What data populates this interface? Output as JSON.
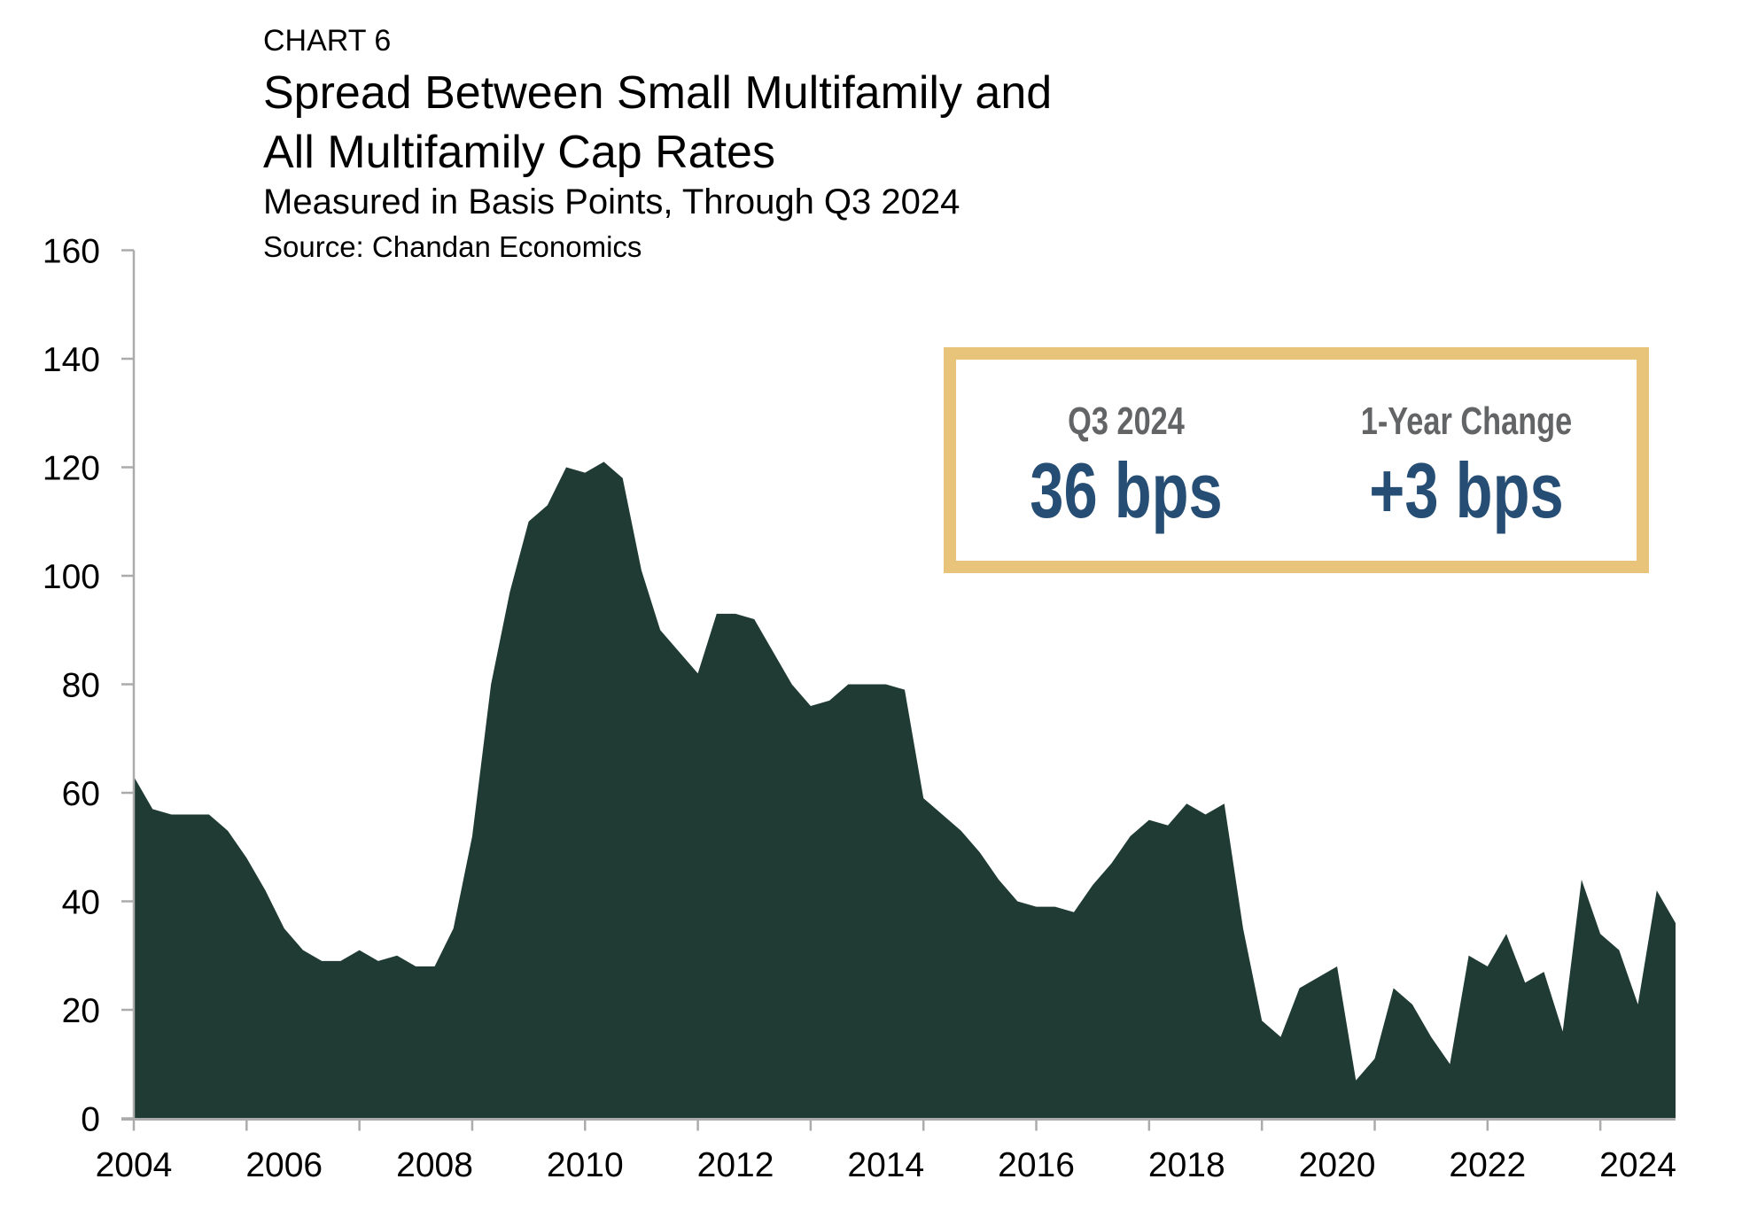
{
  "header": {
    "label": "CHART 6",
    "title_line1": "Spread Between Small Multifamily and",
    "title_line2": "All Multifamily Cap Rates",
    "subtitle": "Measured in Basis Points, Through Q3 2024",
    "source": "Source: Chandan Economics"
  },
  "callout": {
    "left_label": "Q3 2024",
    "left_value": "36 bps",
    "right_label": "1-Year Change",
    "right_value": "+3 bps",
    "border_color": "#E8C37A",
    "value_color": "#264D73",
    "label_color": "#636466"
  },
  "chart_data": {
    "type": "area",
    "title": "Spread Between Small Multifamily and All Multifamily Cap Rates",
    "subtitle": "Measured in Basis Points, Through Q3 2024",
    "source": "Source: Chandan Economics",
    "xlabel": "",
    "ylabel": "",
    "frequency": "quarterly",
    "x_start": "2004 Q1",
    "x_end": "2024 Q3",
    "ylim": [
      0,
      160
    ],
    "yticks": [
      0,
      20,
      40,
      60,
      80,
      100,
      120,
      140,
      160
    ],
    "xtick_labels": [
      "2004",
      "2006",
      "2008",
      "2010",
      "2012",
      "2014",
      "2016",
      "2018",
      "2020",
      "2022",
      "2024"
    ],
    "grid": false,
    "legend": "none",
    "fill_color": "#1F3B33",
    "series": [
      {
        "name": "Spread (bps)",
        "values": [
          63,
          57,
          56,
          56,
          56,
          53,
          48,
          42,
          35,
          31,
          29,
          29,
          31,
          29,
          30,
          28,
          28,
          35,
          52,
          80,
          97,
          110,
          113,
          120,
          119,
          121,
          118,
          101,
          90,
          86,
          82,
          93,
          93,
          92,
          86,
          80,
          76,
          77,
          80,
          80,
          80,
          79,
          59,
          56,
          53,
          49,
          44,
          40,
          39,
          39,
          38,
          43,
          47,
          52,
          55,
          54,
          58,
          56,
          58,
          35,
          18,
          15,
          24,
          26,
          28,
          7,
          11,
          24,
          21,
          15,
          10,
          30,
          28,
          34,
          25,
          27,
          16,
          44,
          34,
          31,
          21,
          42,
          36
        ]
      }
    ]
  }
}
